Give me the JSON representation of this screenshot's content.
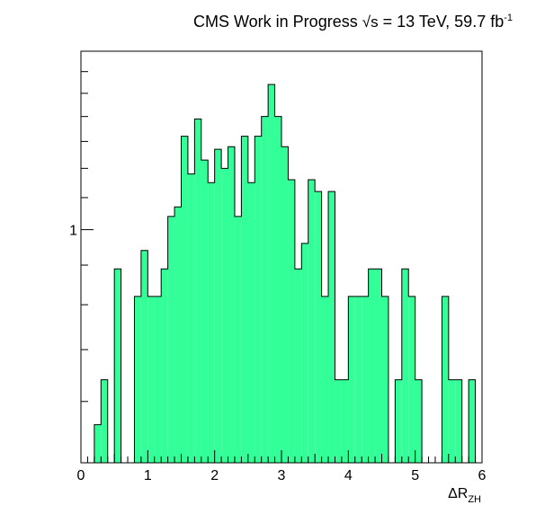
{
  "chart_data": {
    "type": "bar",
    "subtype": "histogram",
    "title": {
      "experiment": "CMS",
      "status": "Work in Progress",
      "sqrt_s": "√s",
      "energy": "= 13 TeV, 59.7 fb",
      "lumi_exp": "-1"
    },
    "xlabel": {
      "main": "ΔR",
      "sub": "ZH"
    },
    "ylabel": "",
    "yscale": "log",
    "xlim": [
      0,
      6
    ],
    "ylim": [
      0.5,
      1.7
    ],
    "x_ticks": [
      "0",
      "1",
      "2",
      "3",
      "4",
      "5",
      "6"
    ],
    "y_ticks": [
      "1"
    ],
    "bin_width": 0.1,
    "bin_low_edges": [
      0,
      0.1,
      0.2,
      0.3,
      0.4,
      0.5,
      0.6,
      0.7,
      0.8,
      0.9,
      1.0,
      1.1,
      1.2,
      1.3,
      1.4,
      1.5,
      1.6,
      1.7,
      1.8,
      1.9,
      2.0,
      2.1,
      2.2,
      2.3,
      2.4,
      2.5,
      2.6,
      2.7,
      2.8,
      2.9,
      3.0,
      3.1,
      3.2,
      3.3,
      3.4,
      3.5,
      3.6,
      3.7,
      3.8,
      3.9,
      4.0,
      4.1,
      4.2,
      4.3,
      4.4,
      4.5,
      4.6,
      4.7,
      4.8,
      4.9,
      5.0,
      5.1,
      5.2,
      5.3,
      5.4,
      5.5,
      5.6,
      5.7,
      5.8,
      5.9
    ],
    "values": [
      0,
      0,
      0.56,
      0.64,
      0,
      0.89,
      0,
      0,
      0.82,
      0.94,
      0.82,
      0.82,
      0.89,
      1.04,
      1.07,
      1.32,
      1.18,
      1.39,
      1.23,
      1.15,
      1.27,
      1.2,
      1.28,
      1.04,
      1.32,
      1.15,
      1.32,
      1.4,
      1.54,
      1.4,
      1.28,
      1.16,
      0.89,
      0.96,
      1.16,
      1.12,
      0.82,
      1.12,
      0.64,
      0.64,
      0.82,
      0.82,
      0.82,
      0.89,
      0.89,
      0.82,
      0,
      0.64,
      0.89,
      0.82,
      0.64,
      0,
      0,
      0,
      0.82,
      0.64,
      0.64,
      0,
      0.64,
      0
    ],
    "fill_color": "#33ff99",
    "line_color": "#000000",
    "grid": false,
    "legend": "none"
  }
}
